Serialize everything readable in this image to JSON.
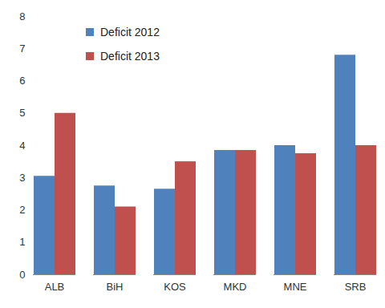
{
  "chart_data": {
    "type": "bar",
    "categories": [
      "ALB",
      "BiH",
      "KOS",
      "MKD",
      "MNE",
      "SRB"
    ],
    "series": [
      {
        "name": "Deficit 2012",
        "color": "#4f81bd",
        "values": [
          3.05,
          2.75,
          2.65,
          3.85,
          4.0,
          6.8
        ]
      },
      {
        "name": "Deficit 2013",
        "color": "#c0504d",
        "values": [
          5.0,
          2.1,
          3.5,
          3.85,
          3.75,
          4.0
        ]
      }
    ],
    "ylim": [
      0,
      8
    ],
    "yticks": [
      0,
      1,
      2,
      3,
      4,
      5,
      6,
      7,
      8
    ],
    "grid": false,
    "legend": "top-left"
  }
}
